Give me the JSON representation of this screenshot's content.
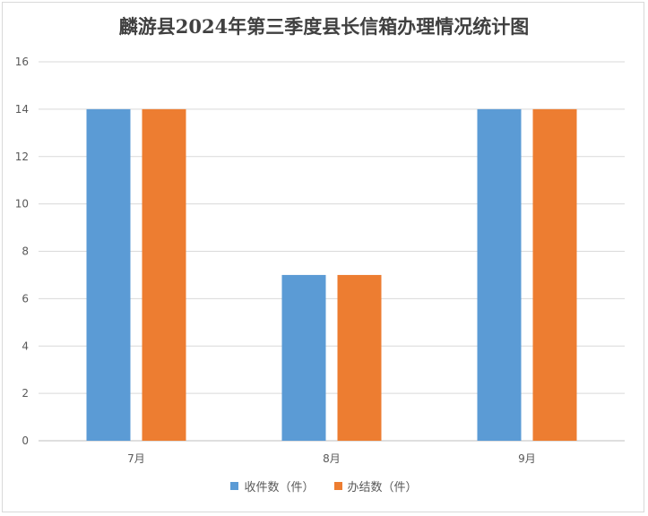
{
  "chart_data": {
    "type": "bar",
    "title": "麟游县2024年第三季度县长信箱办理情况统计图",
    "categories": [
      "7月",
      "8月",
      "9月"
    ],
    "series": [
      {
        "name": "收件数（件）",
        "values": [
          14,
          7,
          14
        ],
        "color": "#5b9bd5"
      },
      {
        "name": "办结数（件）",
        "values": [
          14,
          7,
          14
        ],
        "color": "#ed7d31"
      }
    ],
    "ylim": [
      0,
      16
    ],
    "yticks": [
      0,
      2,
      4,
      6,
      8,
      10,
      12,
      14,
      16
    ],
    "grid": true,
    "legend_position": "bottom"
  }
}
